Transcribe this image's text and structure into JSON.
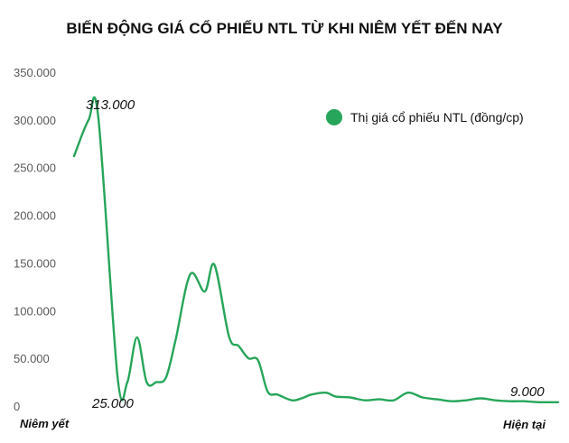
{
  "chart_data": {
    "type": "line",
    "title": "BIẾN ĐỘNG GIÁ CỔ PHIẾU NTL TỪ KHI NIÊM YẾT ĐẾN NAY",
    "xlabel": "",
    "ylabel": "",
    "x_start_label": "Niêm yết",
    "x_end_label": "Hiện tại",
    "ylim": [
      0,
      350000
    ],
    "yticks": [
      0,
      50000,
      100000,
      150000,
      200000,
      250000,
      300000,
      350000
    ],
    "ytick_labels": [
      "0",
      "50.000",
      "100.000",
      "150.000",
      "200.000",
      "250.000",
      "300.000",
      "350.000"
    ],
    "grid": false,
    "legend_position": "top-right",
    "series": [
      {
        "name": "Thị giá cổ phiếu NTL (đồng/cp)",
        "color": "#27a55a",
        "x": [
          0,
          3,
          5,
          9,
          11,
          13,
          15,
          17,
          19,
          21,
          24,
          27,
          29,
          32,
          34,
          36,
          38,
          40,
          42,
          45,
          47,
          49,
          52,
          54,
          57,
          60,
          63,
          66,
          69,
          72,
          75,
          78,
          81,
          84,
          87,
          90,
          93,
          96,
          100
        ],
        "values": [
          262000,
          300000,
          303000,
          30000,
          25000,
          72000,
          25000,
          25000,
          30000,
          70000,
          138000,
          120000,
          148000,
          73000,
          63000,
          50000,
          48000,
          15000,
          12000,
          6000,
          8000,
          12000,
          14000,
          10000,
          9000,
          6000,
          7000,
          6000,
          14000,
          9000,
          7000,
          5000,
          6000,
          8000,
          6000,
          5000,
          5000,
          4000,
          4000
        ]
      }
    ],
    "annotations": [
      "313.000",
      "25.000",
      "9.000"
    ]
  }
}
